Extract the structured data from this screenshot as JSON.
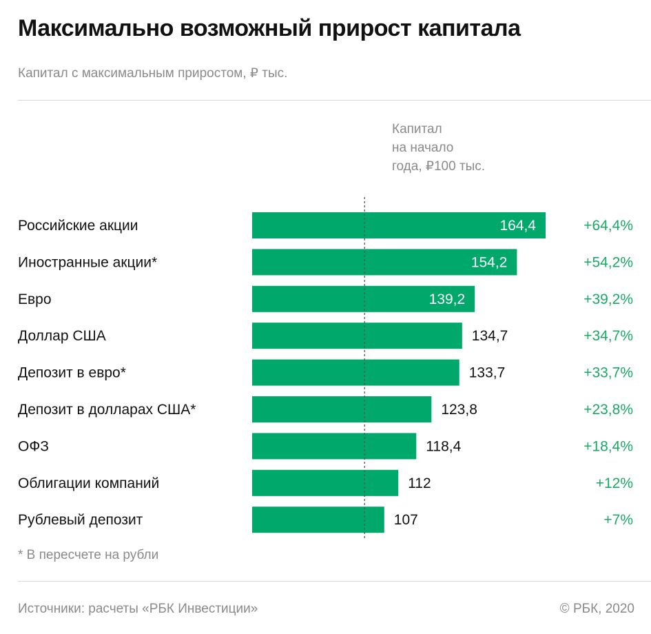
{
  "title": "Максимально возможный прирост капитала",
  "subtitle": "Капитал с максимальным приростом, ₽ тыс.",
  "reference_label": [
    "Капитал",
    "на начало",
    "года, ₽100 тыс."
  ],
  "footnote": "* В пересчете на рубли",
  "source": "Источники: расчеты «РБК Инвестиции»",
  "copyright": "© РБК, 2020",
  "colors": {
    "bar": "#00a86b",
    "growth": "#1aa865",
    "label_inside": "#ffffff",
    "label_outside": "#111111",
    "reference_line": "#555555"
  },
  "chart_data": {
    "type": "bar",
    "orientation": "horizontal",
    "categories": [
      "Российские акции",
      "Иностранные акции*",
      "Евро",
      "Доллар США",
      "Депозит в евро*",
      "Депозит в долларах США*",
      "ОФЗ",
      "Облигации компаний",
      "Рублевый депозит"
    ],
    "values": [
      164.4,
      154.2,
      139.2,
      134.7,
      133.7,
      123.8,
      118.4,
      112,
      107
    ],
    "value_labels": [
      "164,4",
      "154,2",
      "139,2",
      "134,7",
      "133,7",
      "123,8",
      "118,4",
      "112",
      "107"
    ],
    "growth_labels": [
      "+64,4%",
      "+54,2%",
      "+39,2%",
      "+34,7%",
      "+33,7%",
      "+23,8%",
      "+18,4%",
      "+12%",
      "+7%"
    ],
    "reference_value": 100,
    "xlim": [
      0,
      164.4
    ],
    "grid": false
  }
}
